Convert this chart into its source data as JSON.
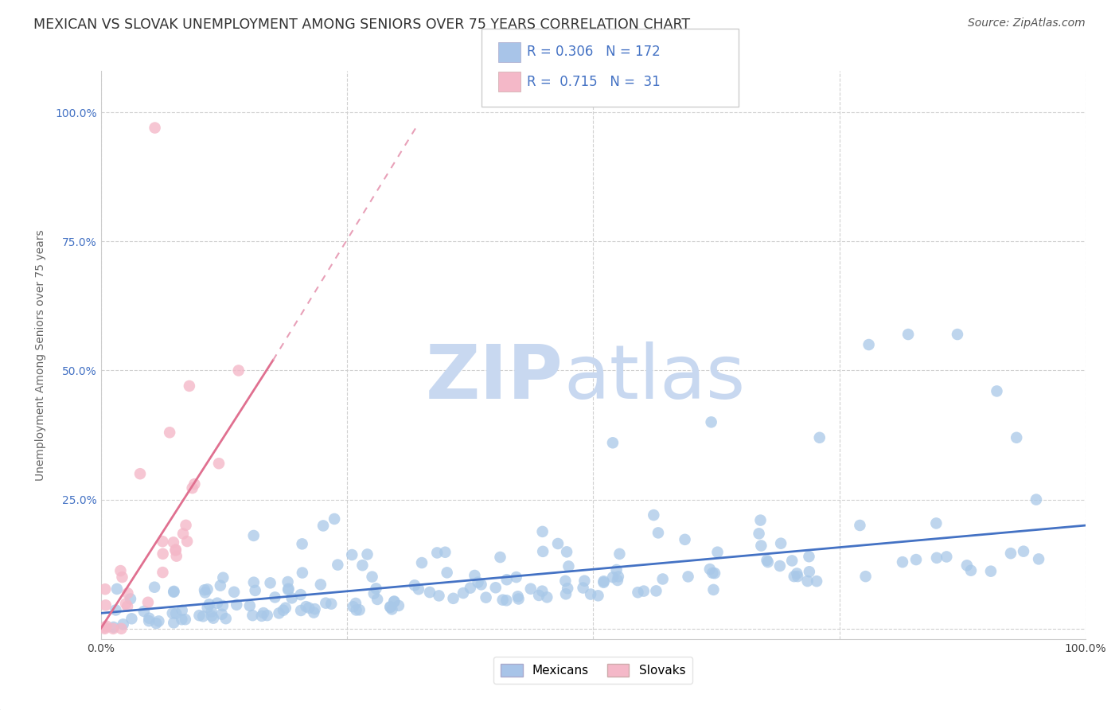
{
  "title": "MEXICAN VS SLOVAK UNEMPLOYMENT AMONG SENIORS OVER 75 YEARS CORRELATION CHART",
  "source": "Source: ZipAtlas.com",
  "ylabel": "Unemployment Among Seniors over 75 years",
  "xlim": [
    0,
    1
  ],
  "ylim": [
    -0.02,
    1.08
  ],
  "xticks": [
    0.0,
    0.25,
    0.5,
    0.75,
    1.0
  ],
  "xtick_labels": [
    "0.0%",
    "",
    "",
    "",
    "100.0%"
  ],
  "yticks": [
    0.0,
    0.25,
    0.5,
    0.75,
    1.0
  ],
  "ytick_labels": [
    "",
    "25.0%",
    "50.0%",
    "75.0%",
    "100.0%"
  ],
  "blue_color": "#a8c8e8",
  "pink_color": "#f4b8c8",
  "blue_line_color": "#4472c4",
  "pink_line_color": "#e07090",
  "pink_dashed_color": "#e8a0b8",
  "R_blue": 0.306,
  "N_blue": 172,
  "R_pink": 0.715,
  "N_pink": 31,
  "watermark_zip_color": "#c8d8f0",
  "watermark_atlas_color": "#c8d8f0",
  "legend_blue": "Mexicans",
  "legend_pink": "Slovaks",
  "legend_blue_patch": "#a8c4e8",
  "legend_pink_patch": "#f4b8c8",
  "title_fontsize": 12.5,
  "source_fontsize": 10,
  "axis_fontsize": 10,
  "tick_fontsize": 10,
  "legend_fontsize": 12
}
